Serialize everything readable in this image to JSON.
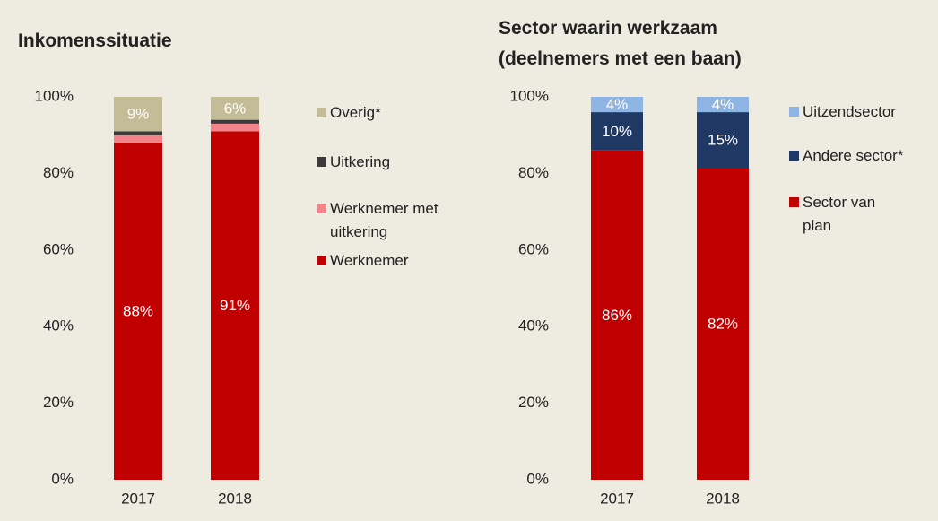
{
  "chart_data": [
    {
      "type": "stacked_bar",
      "title": "Inkomenssituatie",
      "categories": [
        "2017",
        "2018"
      ],
      "series": [
        {
          "name": "Werknemer",
          "color": "#c00000",
          "values": [
            88,
            91
          ],
          "value_labels": [
            "88%",
            "91%"
          ]
        },
        {
          "name": "Werknemer met uitkering",
          "color": "#f4848a",
          "values": [
            2,
            2
          ]
        },
        {
          "name": "Uitkering",
          "color": "#3b3b3b",
          "values": [
            1,
            1
          ]
        },
        {
          "name": "Overig*",
          "color": "#c4bc96",
          "values": [
            9,
            6
          ],
          "value_labels": [
            "9%",
            "6%"
          ]
        }
      ],
      "ylim": [
        0,
        100
      ],
      "yticks": [
        {
          "value": 0,
          "label": "0%"
        },
        {
          "value": 20,
          "label": "20%"
        },
        {
          "value": 40,
          "label": "40%"
        },
        {
          "value": 60,
          "label": "60%"
        },
        {
          "value": 80,
          "label": "80%"
        },
        {
          "value": 100,
          "label": "100%"
        }
      ]
    },
    {
      "type": "stacked_bar",
      "title": [
        "Sector waarin werkzaam",
        "(deelnemers met een baan)"
      ],
      "categories": [
        "2017",
        "2018"
      ],
      "series": [
        {
          "name": "Sector van plan",
          "color": "#c00000",
          "values": [
            86,
            81.5
          ],
          "value_labels": [
            "86%",
            "82%"
          ]
        },
        {
          "name": "Andere sector*",
          "color": "#1f3864",
          "values": [
            10,
            14.5
          ],
          "value_labels": [
            "10%",
            "15%"
          ]
        },
        {
          "name": "Uitzendsector",
          "color": "#8db4e2",
          "values": [
            4,
            4
          ],
          "value_labels": [
            "4%",
            "4%"
          ]
        }
      ],
      "ylim": [
        0,
        100
      ],
      "yticks": [
        {
          "value": 0,
          "label": "0%"
        },
        {
          "value": 20,
          "label": "20%"
        },
        {
          "value": 40,
          "label": "40%"
        },
        {
          "value": 60,
          "label": "60%"
        },
        {
          "value": 80,
          "label": "80%"
        },
        {
          "value": 100,
          "label": "100%"
        }
      ]
    }
  ]
}
